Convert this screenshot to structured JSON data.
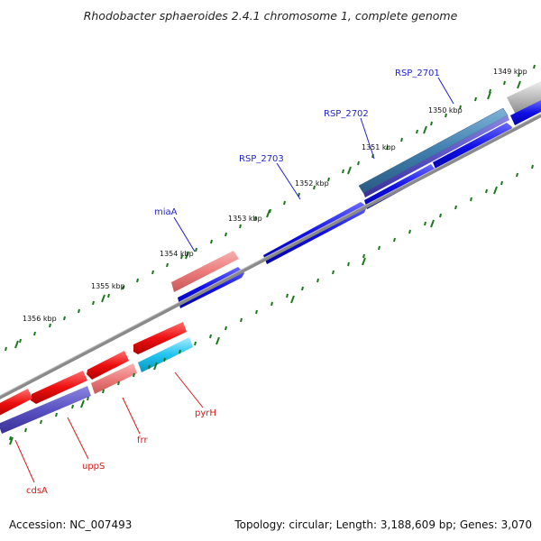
{
  "title": "Rhodobacter sphaeroides 2.4.1 chromosome 1, complete genome",
  "footer": {
    "accession": "Accession: NC_007493",
    "topology": "Topology: circular; Length: 3,188,609 bp; Genes: 3,070"
  },
  "colors": {
    "forward_strand": "#1010e6",
    "reverse_strand": "#ee1010",
    "forward_label": "#1f1fd0",
    "reverse_label": "#d61a1a",
    "tick": "#1a7a1a",
    "backbone": "#8a8a8a"
  },
  "ruler": [
    {
      "label": "1349 kbp"
    },
    {
      "label": "1350 kbp"
    },
    {
      "label": "1351 kbp"
    },
    {
      "label": "1352 kbp"
    },
    {
      "label": "1353 kbp"
    },
    {
      "label": "1354 kbp"
    },
    {
      "label": "1355 kbp"
    },
    {
      "label": "1356 kbp"
    }
  ],
  "genes": [
    {
      "name": "RSP_2701",
      "strand": "forward",
      "color": "#1010e6"
    },
    {
      "name": "RSP_2702",
      "strand": "forward",
      "color": "#1010e6"
    },
    {
      "name": "RSP_2703",
      "strand": "forward",
      "color": "#1010e6"
    },
    {
      "name": "miaA",
      "strand": "forward",
      "color": "#1010e6"
    },
    {
      "name": "pyrH",
      "strand": "reverse",
      "color": "#ee1010"
    },
    {
      "name": "frr",
      "strand": "reverse",
      "color": "#ee1010"
    },
    {
      "name": "uppS",
      "strand": "reverse",
      "color": "#ee1010"
    },
    {
      "name": "cdsA",
      "strand": "reverse",
      "color": "#ee1010"
    }
  ]
}
